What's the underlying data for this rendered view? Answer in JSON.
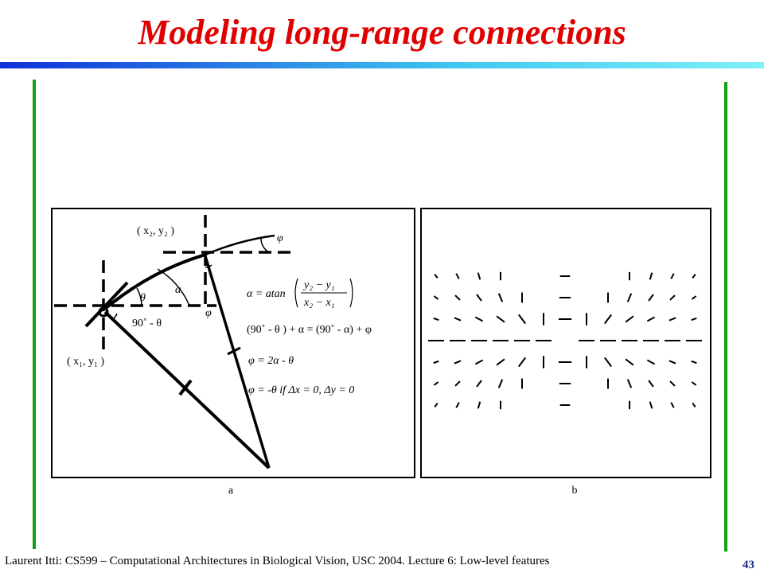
{
  "header": {
    "title": "Modeling long-range connections"
  },
  "figure": {
    "a": {
      "label": "a",
      "p2": "( x₂, y₂ )",
      "p1": "( x₁, y₁ )",
      "phi_top": "φ",
      "alpha": "α",
      "theta": "θ",
      "ninety": "90˚ - θ",
      "phi_low": "φ",
      "eq1_lhs": "α =  atan",
      "eq1_num": "y₂ − y₁",
      "eq1_den": "x₂ − x₁",
      "eq2": "(90˚ - θ ) + α = (90˚ - α) + φ",
      "eq3": "φ  = 2α - θ",
      "eq4": "φ = -θ  if  Δx = 0,  Δy = 0"
    },
    "b": {
      "label": "b"
    }
  },
  "footer": {
    "text": "Laurent Itti: CS599 – Computational Architectures in Biological Vision, USC 2004. Lecture 6: Low-level features",
    "page": "43"
  }
}
